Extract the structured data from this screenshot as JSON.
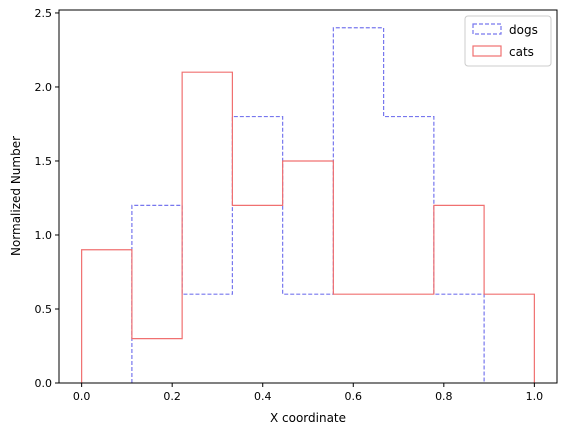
{
  "chart_data": {
    "type": "histogram",
    "xlabel": "X coordinate",
    "ylabel": "Normalized Number",
    "xlim": [
      -0.05,
      1.05
    ],
    "ylim": [
      0,
      2.52
    ],
    "xticks": [
      "0.0",
      "0.2",
      "0.4",
      "0.6",
      "0.8",
      "1.0"
    ],
    "yticks": [
      "0.0",
      "0.5",
      "1.0",
      "1.5",
      "2.0",
      "2.5"
    ],
    "legend_position": "top-right",
    "series": [
      {
        "name": "dogs",
        "color": "#7777ee",
        "style": "dashed",
        "bin_edges": [
          0.111,
          0.222,
          0.333,
          0.444,
          0.556,
          0.667,
          0.778,
          0.889
        ],
        "values": [
          1.2,
          0.6,
          1.8,
          0.6,
          2.4,
          1.8,
          0.6
        ]
      },
      {
        "name": "cats",
        "color": "#f07070",
        "style": "solid",
        "bin_edges": [
          0.0,
          0.111,
          0.222,
          0.333,
          0.444,
          0.556,
          0.667,
          0.778,
          0.889,
          1.0
        ],
        "values": [
          0.9,
          0.3,
          2.1,
          1.2,
          1.5,
          0.6,
          0.6,
          1.2,
          0.6
        ]
      }
    ]
  }
}
